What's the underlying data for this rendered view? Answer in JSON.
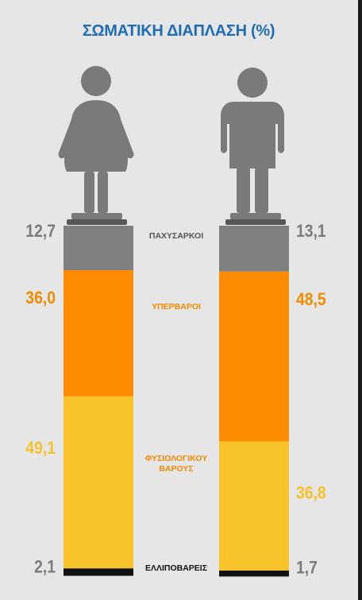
{
  "title": "ΣΩΜΑΤΙΚΗ ΔΙΑΠΛΑΣΗ (%)",
  "colors": {
    "background": "#e6e6e6",
    "title": "#1f6db5",
    "figure": "#7a7a7a",
    "figure_dark": "#575757"
  },
  "chart_data": {
    "type": "bar",
    "stacked": true,
    "categories": [
      "",
      ""
    ],
    "series": [
      {
        "name": "ΠΑΧΥΣΑΡΚΟΙ",
        "values": [
          12.7,
          13.1
        ],
        "labels": [
          "12,7",
          "13,1"
        ],
        "color": "#808080"
      },
      {
        "name": "ΥΠΕΡΒΑΡΟΙ",
        "values": [
          36.0,
          48.5
        ],
        "labels": [
          "36,0",
          "48,5"
        ],
        "color": "#ff8c00"
      },
      {
        "name": "ΦΥΣΙΟΛΟΓΙΚΟΥ ΒΑΡΟΥΣ",
        "values": [
          49.1,
          36.8
        ],
        "labels": [
          "49,1",
          "36,8"
        ],
        "color": "#f8c42a"
      },
      {
        "name": "ΕΛΛΙΠΟΒΑΡΕΙΣ",
        "values": [
          2.1,
          1.7
        ],
        "labels": [
          "2,1",
          "1,7"
        ],
        "color": "#111111"
      }
    ],
    "value_label_colors": [
      "#7b7b7b",
      "#f08a00",
      "#f6c22a",
      "#7b7b7b"
    ],
    "icons": [
      "woman-figure-icon",
      "man-figure-icon"
    ]
  }
}
